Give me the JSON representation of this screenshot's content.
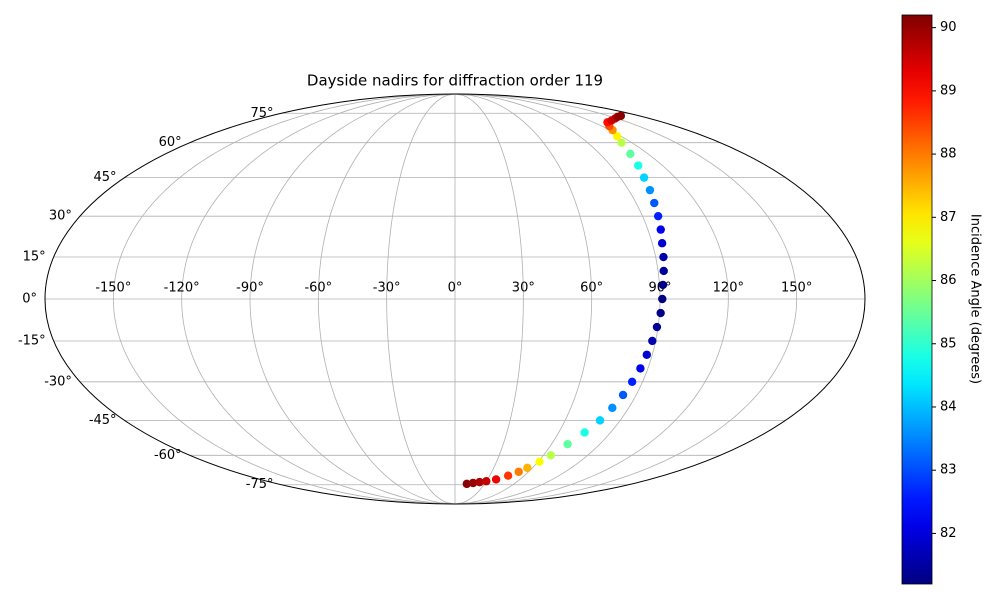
{
  "chart_data": {
    "type": "scatter",
    "projection": "mollweide",
    "title": "Dayside nadirs for diffraction order 119",
    "colorbar_label": "Incidence Angle (degrees)",
    "colormap": "jet",
    "clim": [
      81.2,
      90.2
    ],
    "colorbar_ticks": [
      82,
      83,
      84,
      85,
      86,
      87,
      88,
      89,
      90
    ],
    "xlim": [
      -180,
      180
    ],
    "ylim": [
      -90,
      90
    ],
    "grid": true,
    "xticks": [
      {
        "value": -150,
        "label": "-150°"
      },
      {
        "value": -120,
        "label": "-120°"
      },
      {
        "value": -90,
        "label": "-90°"
      },
      {
        "value": -60,
        "label": "-60°"
      },
      {
        "value": -30,
        "label": "-30°"
      },
      {
        "value": 0,
        "label": "0°"
      },
      {
        "value": 30,
        "label": "30°"
      },
      {
        "value": 60,
        "label": "60°"
      },
      {
        "value": 90,
        "label": "90°"
      },
      {
        "value": 120,
        "label": "120°"
      },
      {
        "value": 150,
        "label": "150°"
      }
    ],
    "yticks": [
      {
        "value": -75,
        "label": "-75°"
      },
      {
        "value": -60,
        "label": "-60°"
      },
      {
        "value": -45,
        "label": "-45°"
      },
      {
        "value": -30,
        "label": "-30°"
      },
      {
        "value": -15,
        "label": "-15°"
      },
      {
        "value": 0,
        "label": "0°"
      },
      {
        "value": 15,
        "label": "15°"
      },
      {
        "value": 30,
        "label": "30°"
      },
      {
        "value": 45,
        "label": "45°"
      },
      {
        "value": 60,
        "label": "60°"
      },
      {
        "value": 75,
        "label": "75°"
      }
    ],
    "x": [
      12,
      18,
      24,
      30,
      38,
      46,
      52,
      56,
      61,
      65,
      70,
      75,
      79,
      81.5,
      83.5,
      85,
      86.5,
      87.5,
      88.5,
      89.5,
      90.5,
      91,
      91.5,
      92.5,
      93.5,
      94.5,
      96,
      97.5,
      99,
      101,
      103,
      106,
      109,
      113,
      117,
      122,
      126,
      132,
      140,
      148,
      156,
      162
    ],
    "y": [
      -74.5,
      -74,
      -73.5,
      -73,
      -72,
      -70,
      -68,
      -66,
      -63,
      -60,
      -55,
      -50,
      -45,
      -40,
      -35,
      -30,
      -25,
      -20,
      -15,
      -10,
      -5,
      0,
      5,
      10,
      15,
      20,
      25,
      30,
      35,
      40,
      45,
      50,
      55,
      60,
      63,
      66,
      68,
      70,
      71,
      72,
      73,
      73.5
    ],
    "c": [
      90.1,
      90,
      89.8,
      89.6,
      89.2,
      88.6,
      88,
      87.5,
      86.8,
      86.2,
      85.4,
      84.8,
      84.2,
      83.6,
      83.1,
      82.6,
      82.2,
      81.9,
      81.6,
      81.4,
      81.3,
      81.2,
      81.3,
      81.4,
      81.6,
      81.9,
      82.2,
      82.6,
      83.1,
      83.6,
      84.2,
      84.8,
      85.4,
      86.2,
      86.9,
      87.8,
      88.4,
      89,
      89.4,
      89.7,
      90,
      90.1
    ]
  }
}
